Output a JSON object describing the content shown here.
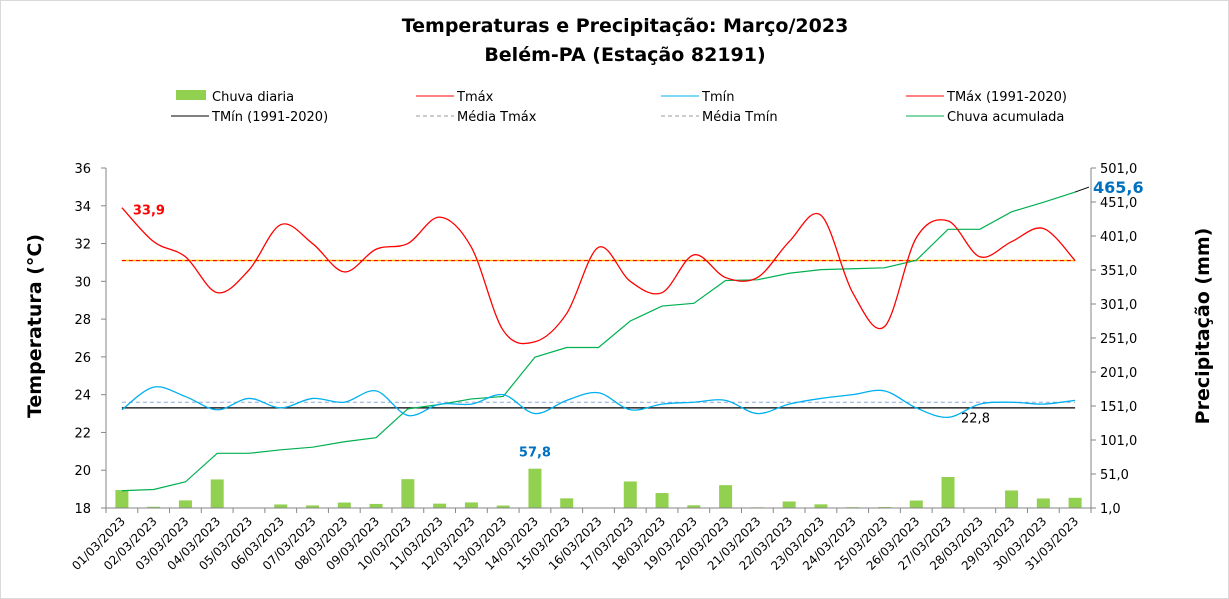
{
  "chart_data": {
    "type": "line",
    "title": "Temperaturas e Precipitação: Março/2023",
    "subtitle": "Belém-PA (Estação 82191)",
    "ylabel": "Temperatura (°C)",
    "y2label": "Precipitação (mm)",
    "ylim": [
      18,
      36
    ],
    "y2lim": [
      1,
      501
    ],
    "yticks": [
      "18",
      "20",
      "22",
      "24",
      "26",
      "28",
      "30",
      "32",
      "34",
      "36"
    ],
    "y2ticks": [
      "1,0",
      "51,0",
      "101,0",
      "151,0",
      "201,0",
      "251,0",
      "301,0",
      "351,0",
      "401,0",
      "451,0",
      "501,0"
    ],
    "legend_position": "top",
    "legend": [
      "Chuva diaria",
      "Tmáx",
      "Tmín",
      "TMáx (1991-2020)",
      "TMín (1991-2020)",
      "Média Tmáx",
      "Média Tmín",
      "Chuva acumulada"
    ],
    "categories": [
      "01/03/2023",
      "02/03/2023",
      "03/03/2023",
      "04/03/2023",
      "05/03/2023",
      "06/03/2023",
      "07/03/2023",
      "08/03/2023",
      "09/03/2023",
      "10/03/2023",
      "11/03/2023",
      "12/03/2023",
      "13/03/2023",
      "14/03/2023",
      "15/03/2023",
      "16/03/2023",
      "17/03/2023",
      "18/03/2023",
      "19/03/2023",
      "20/03/2023",
      "21/03/2023",
      "22/03/2023",
      "23/03/2023",
      "24/03/2023",
      "25/03/2023",
      "26/03/2023",
      "27/03/2023",
      "28/03/2023",
      "29/03/2023",
      "30/03/2023",
      "31/03/2023"
    ],
    "tmax": [
      33.9,
      32.1,
      31.3,
      29.4,
      30.6,
      33.0,
      32.0,
      30.5,
      31.7,
      32.0,
      33.4,
      31.8,
      27.4,
      26.8,
      28.3,
      31.8,
      30.0,
      29.4,
      31.4,
      30.2,
      30.2,
      32.1,
      33.5,
      29.4,
      27.6,
      32.3,
      33.2,
      31.3,
      32.1,
      32.8,
      31.1
    ],
    "tmin": [
      23.2,
      24.4,
      23.9,
      23.2,
      23.8,
      23.3,
      23.8,
      23.6,
      24.2,
      22.9,
      23.5,
      23.5,
      24.0,
      23.0,
      23.7,
      24.1,
      23.2,
      23.5,
      23.6,
      23.7,
      23.0,
      23.5,
      23.8,
      24.0,
      24.2,
      23.3,
      22.8,
      23.5,
      23.6,
      23.5,
      23.7
    ],
    "chuva_diaria": [
      26.4,
      1.8,
      11.2,
      42.0,
      0,
      5.2,
      3.8,
      8.0,
      6.0,
      42.4,
      6.4,
      8.2,
      3.6,
      57.8,
      14.2,
      0,
      39.0,
      22.0,
      4.0,
      33.6,
      1.0,
      9.6,
      5.4,
      1.2,
      1.4,
      11.0,
      45.6,
      0,
      25.8,
      14.0,
      15.0
    ],
    "tmax_normal": 31.1,
    "tmin_normal": 23.3,
    "media_tmax": 31.1,
    "media_tmin": 23.6,
    "chuva_acumulada_total": "465,6",
    "annotations": {
      "tmax_first": "33,9",
      "chuva_max": "57,8",
      "tmin_min": "22,8",
      "acumulada": "465,6"
    },
    "colors": {
      "bar": "#92d050",
      "tmax": "#ff0000",
      "tmin": "#00b0f0",
      "tmin_normal": "#000000",
      "media": "#8ea9db",
      "acum": "#00b050",
      "label_blue": "#0070c0",
      "yellow": "#ffc000"
    }
  }
}
